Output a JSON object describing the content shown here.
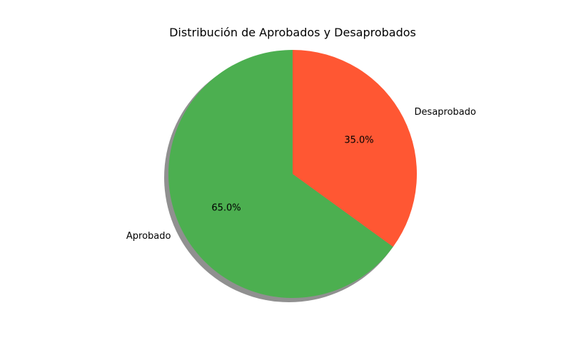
{
  "chart_data": {
    "type": "pie",
    "title": "Distribución de Aprobados y Desaprobados",
    "labels": [
      "Aprobado",
      "Desaprobado"
    ],
    "values": [
      65.0,
      35.0
    ],
    "percent_labels": [
      "65.0%",
      "35.0%"
    ],
    "colors": [
      "#4caf50",
      "#ff5733"
    ],
    "start_angle_deg": 90,
    "shadow": true
  }
}
